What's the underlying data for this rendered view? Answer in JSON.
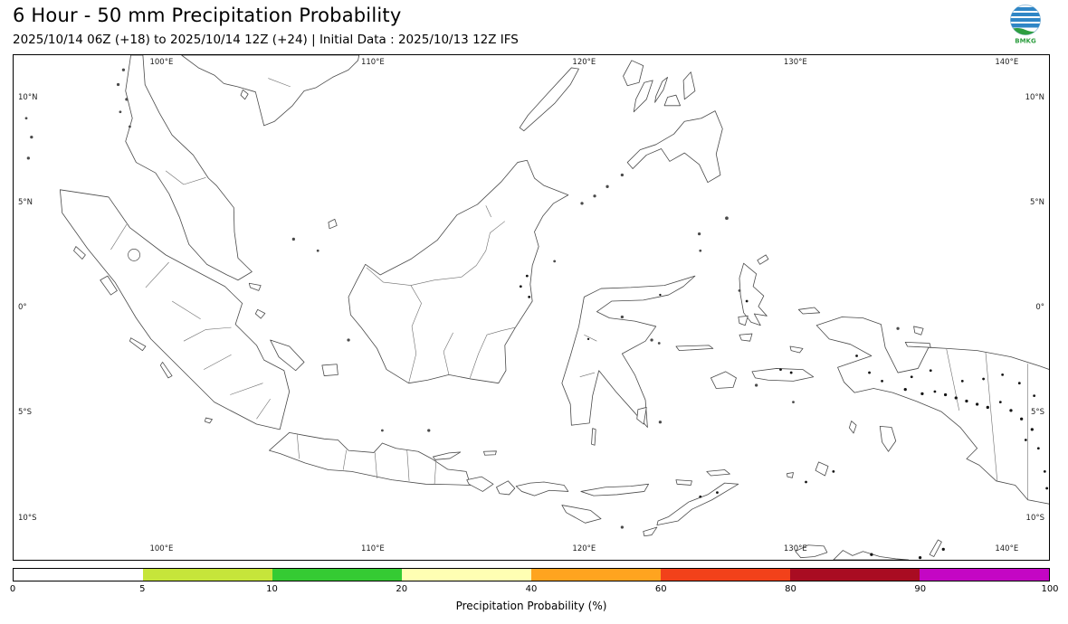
{
  "header": {
    "title": "6 Hour - 50 mm Precipitation Probability",
    "subtitle": "2025/10/14 06Z (+18) to 2025/10/14 12Z (+24) | Initial Data : 2025/10/13 12Z IFS",
    "logo_text": "BMKG"
  },
  "map": {
    "extent": {
      "lon_min": 93,
      "lon_max": 142,
      "lat_min": -12,
      "lat_max": 12
    },
    "lon_ticks": [
      {
        "label": "100°E",
        "lon": 100
      },
      {
        "label": "110°E",
        "lon": 110
      },
      {
        "label": "120°E",
        "lon": 120
      },
      {
        "label": "130°E",
        "lon": 130
      },
      {
        "label": "140°E",
        "lon": 140
      }
    ],
    "lat_ticks": [
      {
        "label": "10°N",
        "lat": 10
      },
      {
        "label": "5°N",
        "lat": 5
      },
      {
        "label": "0°",
        "lat": 0
      },
      {
        "label": "5°S",
        "lat": -5
      },
      {
        "label": "10°S",
        "lat": -10
      }
    ]
  },
  "colorbar": {
    "label": "Precipitation Probability (%)",
    "tick_labels": [
      "0",
      "5",
      "10",
      "20",
      "40",
      "60",
      "80",
      "90",
      "100"
    ],
    "segment_colors": [
      "#ffffff",
      "#c6e53a",
      "#35cb33",
      "#ffffb3",
      "#ffa41f",
      "#f2411a",
      "#a90c22",
      "#c406c4"
    ]
  }
}
